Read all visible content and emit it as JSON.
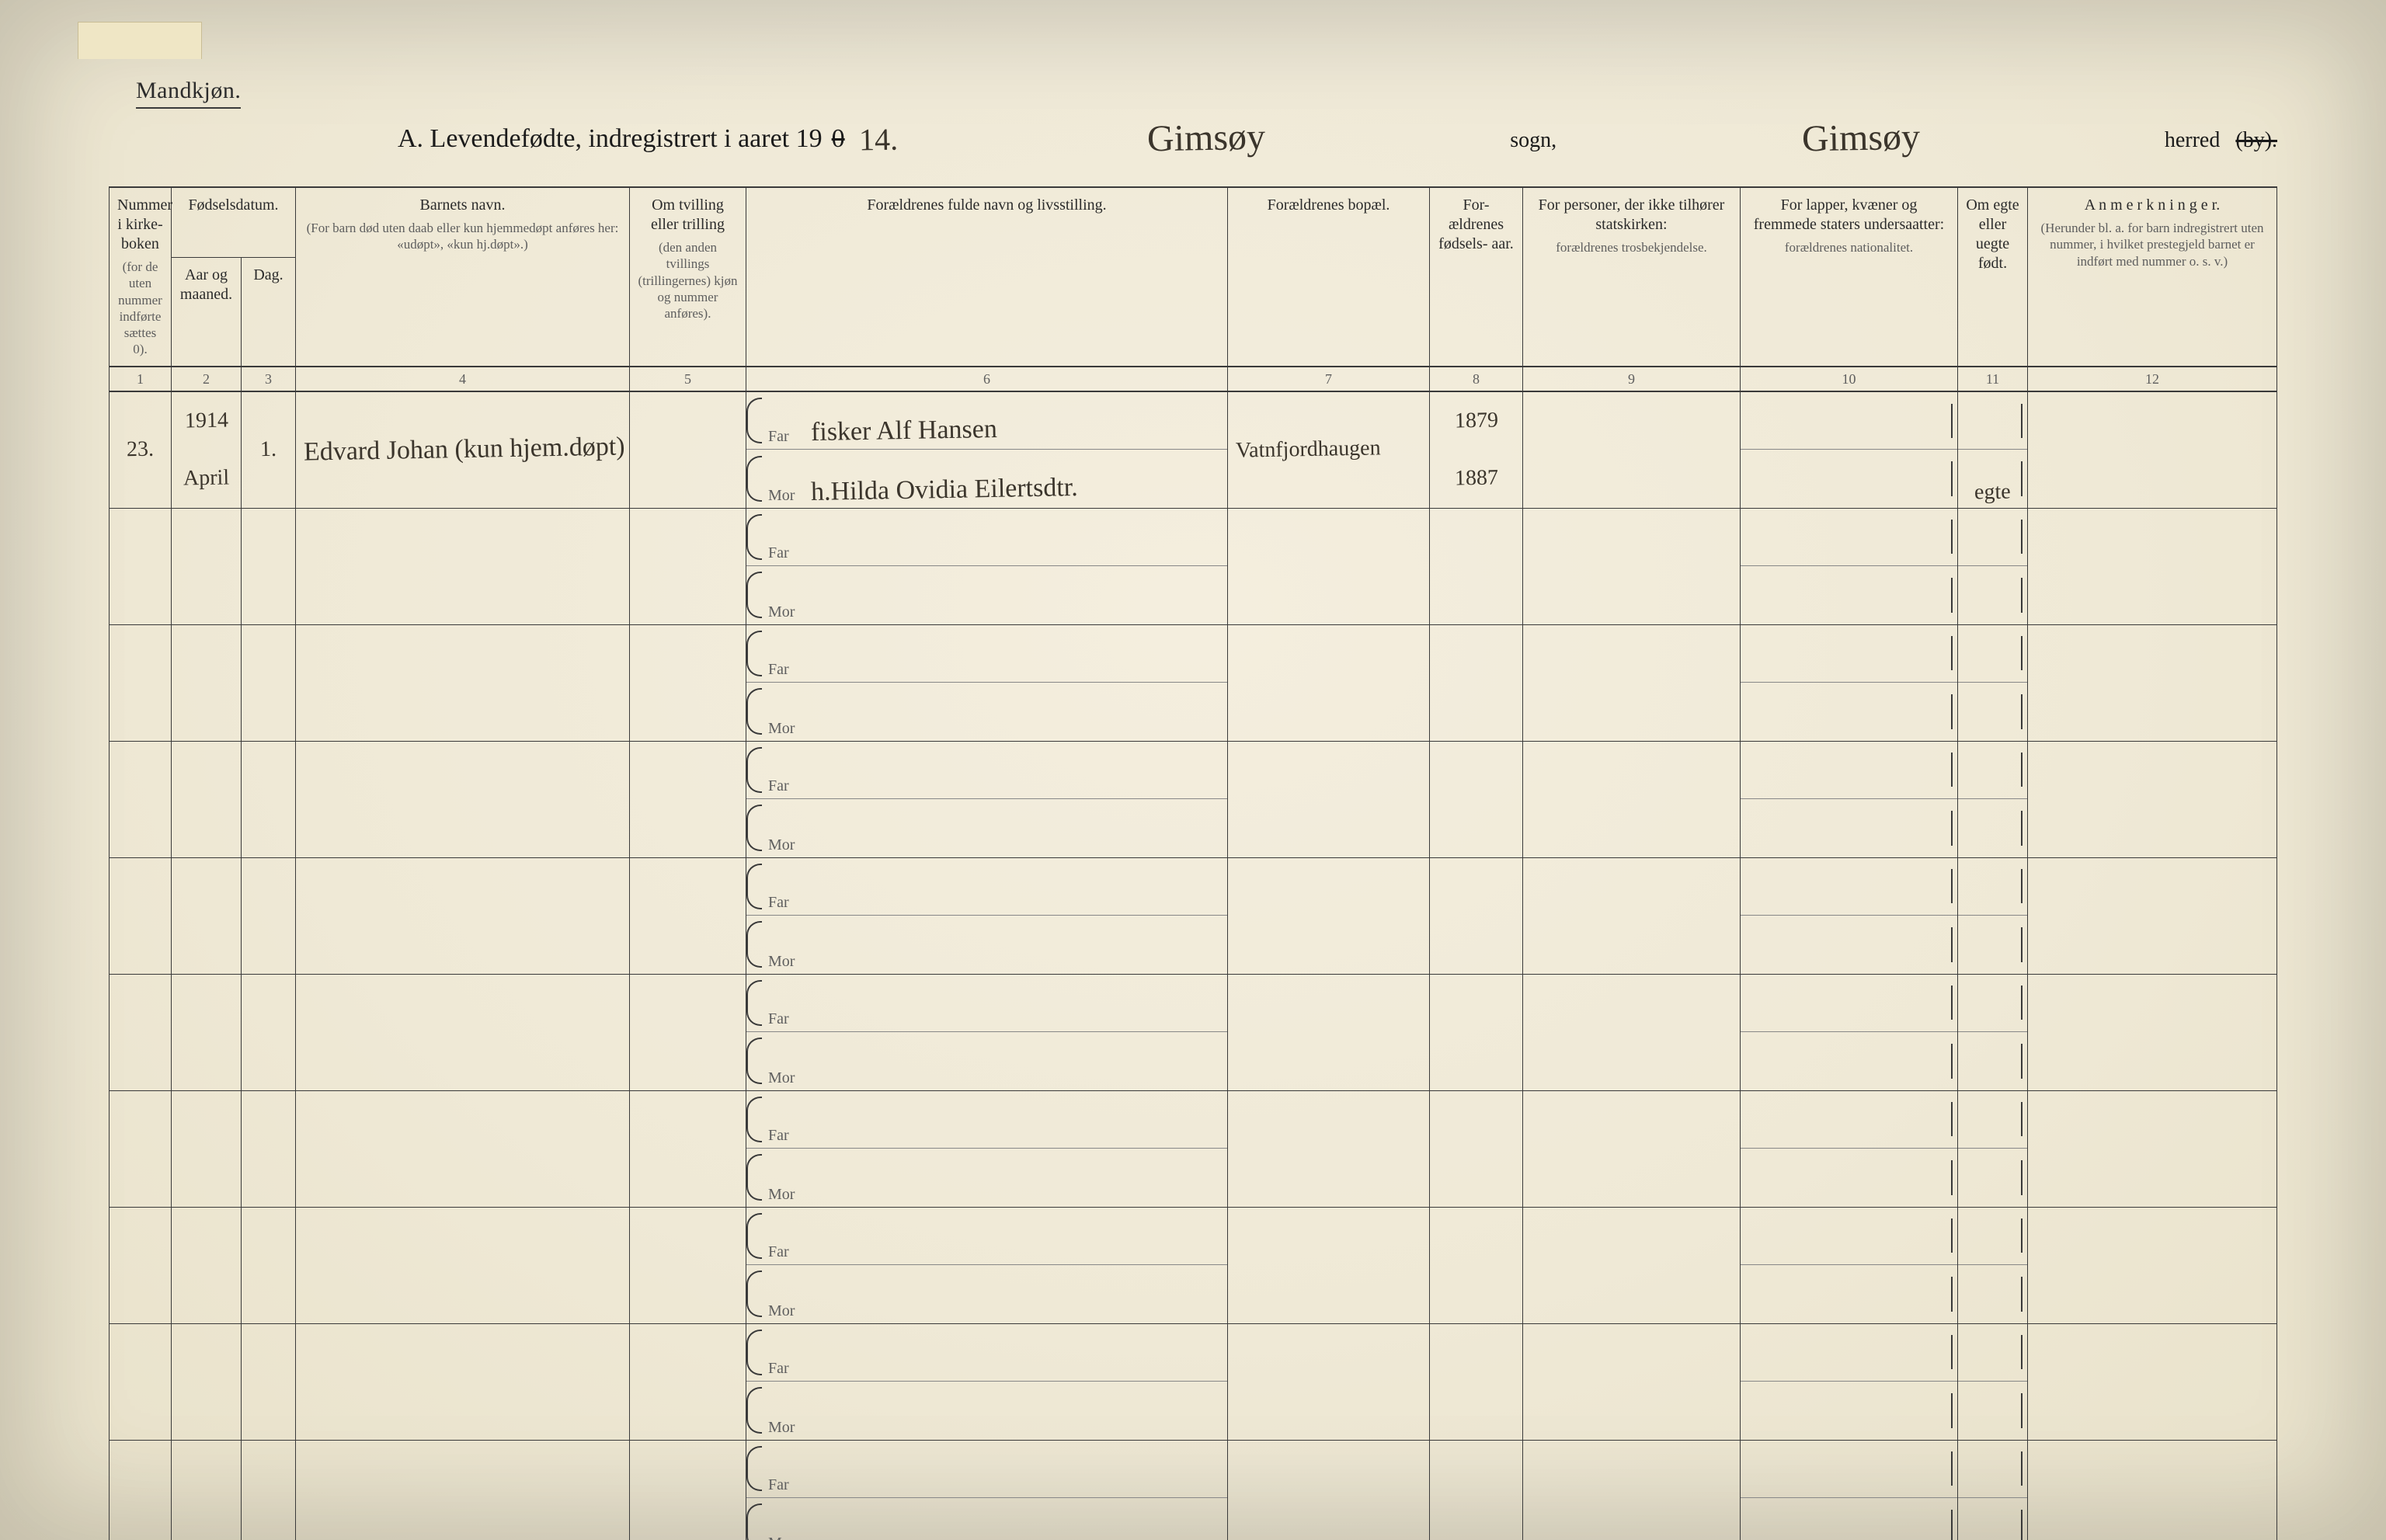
{
  "header": {
    "gender_label": "Mandkjøn.",
    "title_prefix": "A.  Levendefødte, indregistrert i aaret 19",
    "year_overstrike": "0",
    "year_written": "14.",
    "sogn_hand": "Gimsøy",
    "sogn_print": "sogn,",
    "herred_hand": "Gimsøy",
    "herred_print": "herred",
    "by_struck": "(by)."
  },
  "columns": {
    "c1": {
      "head": "Nummer i kirke- boken",
      "sub": "(for de uten nummer indførte sættes 0).",
      "num": "1"
    },
    "c2_group": "Fødselsdatum.",
    "c2": {
      "head": "Aar og maaned.",
      "num": "2"
    },
    "c3": {
      "head": "Dag.",
      "num": "3"
    },
    "c4": {
      "head": "Barnets navn.",
      "sub": "(For barn død uten daab eller kun hjemmedøpt anføres her: «udøpt», «kun hj.døpt».)",
      "num": "4"
    },
    "c5": {
      "head": "Om tvilling eller trilling",
      "sub": "(den anden tvillings (trillingernes) kjøn og nummer anføres).",
      "num": "5"
    },
    "c6": {
      "head": "Forældrenes fulde navn og livsstilling.",
      "num": "6"
    },
    "c7": {
      "head": "Forældrenes bopæl.",
      "num": "7"
    },
    "c8": {
      "head": "For- ældrenes fødsels- aar.",
      "num": "8"
    },
    "c9": {
      "head": "For personer, der ikke tilhører statskirken:",
      "sub": "forældrenes trosbekjendelse.",
      "num": "9"
    },
    "c10": {
      "head": "For lapper, kvæner og fremmede staters undersaatter:",
      "sub": "forældrenes nationalitet.",
      "num": "10"
    },
    "c11": {
      "head": "Om egte eller uegte født.",
      "num": "11"
    },
    "c12": {
      "head": "A n m e r k n i n g e r.",
      "sub": "(Herunder bl. a. for barn indregistrert uten nummer, i hvilket prestegjeld barnet er indført med nummer o. s. v.)",
      "num": "12"
    }
  },
  "row_labels": {
    "far": "Far",
    "mor": "Mor"
  },
  "rows": [
    {
      "num": "23.",
      "year_month_top": "1914",
      "year_month_bottom": "April",
      "day": "1.",
      "child_name": "Edvard Johan (kun hjem.døpt)",
      "far": "fisker Alf Hansen",
      "mor": "h.Hilda Ovidia Eilertsdtr.",
      "bopael": "Vatnfjordhaugen",
      "far_year": "1879",
      "mor_year": "1887",
      "egte": "egte"
    },
    {},
    {},
    {},
    {},
    {},
    {},
    {},
    {},
    {}
  ]
}
